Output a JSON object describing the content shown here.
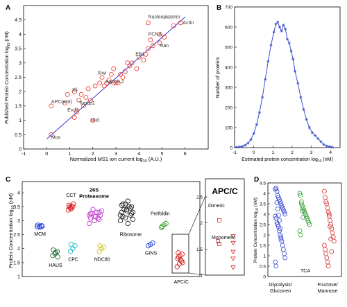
{
  "panels": {
    "A": {
      "letter": "A"
    },
    "B": {
      "letter": "B"
    },
    "C": {
      "letter": "C"
    },
    "D": {
      "letter": "D"
    }
  },
  "chart_data": [
    {
      "panel": "A",
      "type": "scatter",
      "xlabel": "Normalized MS1 ion current log",
      "xlabel_sub": "10",
      "xlabel_tail": " (A.U.)",
      "ylabel": "Published Protein Concentration log",
      "ylabel_sub": "10",
      "ylabel_tail": " (nM)",
      "xlim": [
        -1,
        7
      ],
      "ylim": [
        0,
        5
      ],
      "xticks": [
        "-1",
        "0",
        "1",
        "2",
        "3",
        "4",
        "5",
        "6"
      ],
      "yticks": [
        "0",
        "0.5",
        "1",
        "1.5",
        "2",
        "2.5",
        "3",
        "3.5",
        "4",
        "4.5"
      ],
      "fit_line": {
        "x": [
          0.0,
          6.0
        ],
        "y": [
          0.35,
          4.6
        ]
      },
      "colors": {
        "points": "#e8352b",
        "fit": "#3b3bd6",
        "labels": "#333333"
      },
      "points": [
        {
          "x": 0.2,
          "y": 0.5
        },
        {
          "x": 0.2,
          "y": 1.5
        },
        {
          "x": 0.8,
          "y": 1.6
        },
        {
          "x": 0.9,
          "y": 1.9
        },
        {
          "x": 1.2,
          "y": 1.1
        },
        {
          "x": 1.3,
          "y": 1.3
        },
        {
          "x": 1.2,
          "y": 2.0
        },
        {
          "x": 1.5,
          "y": 1.9
        },
        {
          "x": 1.4,
          "y": 1.7
        },
        {
          "x": 1.7,
          "y": 1.8
        },
        {
          "x": 1.8,
          "y": 2.1
        },
        {
          "x": 1.9,
          "y": 1.7
        },
        {
          "x": 2.0,
          "y": 1.0
        },
        {
          "x": 2.1,
          "y": 2.2
        },
        {
          "x": 2.3,
          "y": 2.3
        },
        {
          "x": 2.4,
          "y": 2.5
        },
        {
          "x": 2.5,
          "y": 2.2
        },
        {
          "x": 2.6,
          "y": 2.3
        },
        {
          "x": 2.7,
          "y": 2.4
        },
        {
          "x": 2.8,
          "y": 2.6
        },
        {
          "x": 2.9,
          "y": 2.3
        },
        {
          "x": 3.0,
          "y": 2.3
        },
        {
          "x": 3.1,
          "y": 2.3
        },
        {
          "x": 3.2,
          "y": 2.6
        },
        {
          "x": 3.3,
          "y": 2.5
        },
        {
          "x": 3.4,
          "y": 2.7
        },
        {
          "x": 3.5,
          "y": 3.0
        },
        {
          "x": 3.6,
          "y": 2.9
        },
        {
          "x": 3.7,
          "y": 3.0
        },
        {
          "x": 3.9,
          "y": 2.8
        },
        {
          "x": 4.0,
          "y": 3.2
        },
        {
          "x": 4.2,
          "y": 3.1
        },
        {
          "x": 4.3,
          "y": 3.3
        },
        {
          "x": 4.4,
          "y": 3.5
        },
        {
          "x": 4.6,
          "y": 3.6
        },
        {
          "x": 4.5,
          "y": 3.8
        },
        {
          "x": 4.9,
          "y": 3.7
        },
        {
          "x": 4.9,
          "y": 4.0
        },
        {
          "x": 5.1,
          "y": 3.9
        },
        {
          "x": 4.4,
          "y": 4.4
        },
        {
          "x": 5.5,
          "y": 4.3
        },
        {
          "x": 5.8,
          "y": 4.4
        },
        {
          "x": 2.9,
          "y": 2.8
        },
        {
          "x": 1.6,
          "y": 1.5
        }
      ],
      "annotations": [
        {
          "text": "Nucleoplasmin",
          "x": 4.4,
          "y": 4.55
        },
        {
          "text": "Actin",
          "x": 5.9,
          "y": 4.35
        },
        {
          "text": "PCNA",
          "x": 4.4,
          "y": 3.95
        },
        {
          "text": "Ran",
          "x": 4.9,
          "y": 3.55
        },
        {
          "text": "EB1",
          "x": 3.85,
          "y": 3.25
        },
        {
          "text": "Xiwi",
          "x": 2.2,
          "y": 2.6
        },
        {
          "text": "Arp2/3 2",
          "x": 2.55,
          "y": 2.3
        },
        {
          "text": "Xli",
          "x": 1.1,
          "y": 2.0
        },
        {
          "text": "APC(wnt)",
          "x": 0.2,
          "y": 1.6
        },
        {
          "text": "Topbp1",
          "x": 1.4,
          "y": 1.55
        },
        {
          "text": "Ercf2",
          "x": 0.9,
          "y": 1.3
        },
        {
          "text": "xkid",
          "x": 1.9,
          "y": 0.95
        },
        {
          "text": "Mos",
          "x": 0.2,
          "y": 0.35
        }
      ]
    },
    {
      "panel": "B",
      "type": "line",
      "xlabel": "Estimated protein concentration log",
      "xlabel_sub": "10",
      "xlabel_tail": " (nM)",
      "ylabel": "Number of proteins",
      "xlim": [
        -1,
        4.5
      ],
      "ylim": [
        0,
        700
      ],
      "xticks": [
        "-1",
        "0",
        "1",
        "2",
        "3",
        "4"
      ],
      "yticks": [
        "0",
        "100",
        "200",
        "300",
        "400",
        "500",
        "600",
        "700"
      ],
      "colors": {
        "line": "#3b4fd1"
      },
      "x": [
        -0.9,
        -0.75,
        -0.6,
        -0.45,
        -0.3,
        -0.15,
        0.0,
        0.15,
        0.3,
        0.45,
        0.6,
        0.75,
        0.9,
        1.05,
        1.15,
        1.25,
        1.35,
        1.45,
        1.55,
        1.65,
        1.75,
        1.85,
        1.95,
        2.05,
        2.15,
        2.3,
        2.45,
        2.6,
        2.75,
        2.9,
        3.05,
        3.2,
        3.35,
        3.5,
        3.65,
        3.8,
        3.95,
        4.1
      ],
      "y": [
        2,
        4,
        6,
        12,
        22,
        40,
        70,
        115,
        175,
        250,
        340,
        430,
        510,
        575,
        615,
        625,
        600,
        580,
        610,
        590,
        540,
        520,
        480,
        440,
        380,
        320,
        250,
        190,
        140,
        100,
        75,
        60,
        45,
        30,
        15,
        8,
        4,
        2
      ]
    },
    {
      "panel": "C",
      "type": "scatter",
      "ylabel": "Protein Concentration log",
      "ylabel_sub": "10",
      "ylabel_tail": " (nM)",
      "ylim": [
        1,
        4.4
      ],
      "yticks": [
        "1",
        "1.5",
        "2",
        "2.5",
        "3",
        "3.5",
        "4"
      ],
      "groups": [
        {
          "name": "MCM",
          "color": "#1f3fd6",
          "x": 0.8,
          "values": [
            2.78,
            2.8,
            2.82,
            2.84,
            2.76,
            2.8
          ]
        },
        {
          "name": "HAUS",
          "color": "#1b6b2e",
          "x": 1.5,
          "values": [
            1.75,
            1.82,
            1.9,
            1.95,
            1.86,
            1.7
          ]
        },
        {
          "name": "CCT",
          "color": "#d42020",
          "x": 2.2,
          "values": [
            3.38,
            3.45,
            3.5,
            3.55,
            3.42,
            3.6,
            3.48,
            3.52
          ]
        },
        {
          "name": "CPC",
          "color": "#22b8c8",
          "x": 2.3,
          "values": [
            1.9,
            2.0,
            2.1,
            2.15
          ]
        },
        {
          "name": "26S Proteasome",
          "color": "#c43ad0",
          "x": 3.3,
          "values": [
            2.9,
            3.0,
            3.05,
            3.1,
            3.15,
            3.2,
            3.25,
            3.3,
            3.35,
            3.4,
            3.1,
            3.2,
            3.0,
            3.3,
            3.25,
            3.15
          ]
        },
        {
          "name": "NDC80",
          "color": "#d4c21a",
          "x": 3.6,
          "values": [
            1.9,
            2.0,
            2.05,
            2.1
          ]
        },
        {
          "name": "Ribosome",
          "color": "#222222",
          "x": 4.7,
          "values": [
            3.0,
            3.1,
            3.2,
            3.3,
            3.4,
            3.5,
            3.6,
            3.7,
            3.3,
            3.4,
            3.5,
            3.2,
            3.6,
            3.45,
            3.55,
            3.35,
            3.25,
            3.15,
            2.9,
            3.05
          ]
        },
        {
          "name": "GINS",
          "color": "#1f3fd6",
          "x": 5.8,
          "values": [
            2.1,
            2.15,
            2.2
          ]
        },
        {
          "name": "Prefoldin",
          "color": "#3aa02a",
          "x": 6.4,
          "values": [
            2.75,
            2.85,
            2.9,
            2.8
          ]
        },
        {
          "name": "APC/C",
          "color": "#d42020",
          "x": 7.1,
          "values": [
            1.35,
            1.45,
            1.55,
            1.65,
            1.75,
            1.8,
            1.85,
            1.6,
            1.5,
            1.7
          ]
        }
      ],
      "inset": {
        "title": "APC/C",
        "ylim": [
          1,
          2.5
        ],
        "yticks": [
          "1",
          "1.5",
          "2",
          "2.5"
        ],
        "subgroups": [
          {
            "name": "Dimeric",
            "marker": "square",
            "values": [
              2.05,
              1.65,
              1.6
            ]
          },
          {
            "name": "Monomeric",
            "marker": "triangle-down",
            "values": [
              1.75,
              1.62,
              1.45,
              1.32,
              1.15
            ]
          }
        ]
      }
    },
    {
      "panel": "D",
      "type": "scatter",
      "ylabel": "Protein Concentration log",
      "ylabel_sub": "10",
      "ylabel_tail": " (nM)",
      "ylim": [
        0,
        4.5
      ],
      "yticks": [
        "0",
        "0.5",
        "1",
        "1.5",
        "2",
        "2.5",
        "3",
        "3.5",
        "4",
        "4.5"
      ],
      "groups": [
        {
          "name": "Glycolysis/ Gluconeo",
          "line1": "Glycolysis/",
          "line2": "Gluconeo",
          "color": "#2a3ed0",
          "x": 1,
          "values": [
            4.2,
            4.25,
            4.1,
            3.9,
            3.8,
            3.7,
            3.6,
            3.5,
            3.4,
            3.3,
            3.2,
            3.1,
            3.0,
            2.9,
            2.8,
            2.6,
            2.5,
            2.4,
            2.2,
            2.0,
            1.9,
            1.7,
            1.5,
            1.3,
            1.1,
            0.9,
            0.7,
            0.5,
            3.55,
            3.25,
            2.95,
            2.7,
            2.3,
            1.8
          ]
        },
        {
          "name": "TCA",
          "color": "#2a9a2a",
          "x": 2,
          "values": [
            4.0,
            3.9,
            3.6,
            3.4,
            3.3,
            3.2,
            3.1,
            3.0,
            2.9,
            2.8,
            2.7,
            2.6,
            2.5,
            2.2,
            2.0,
            3.5,
            3.15,
            2.85
          ]
        },
        {
          "name": "Fructose/ Mannose",
          "line1": "Fructose/",
          "line2": "Mannose",
          "color": "#d42a2a",
          "x": 3,
          "values": [
            4.1,
            3.8,
            3.6,
            3.5,
            3.3,
            3.1,
            2.9,
            2.7,
            2.5,
            2.3,
            2.1,
            1.9,
            1.7,
            1.5,
            1.3,
            1.1,
            0.9,
            0.7,
            0.5,
            3.0,
            2.4,
            1.8,
            1.2
          ]
        }
      ]
    }
  ]
}
